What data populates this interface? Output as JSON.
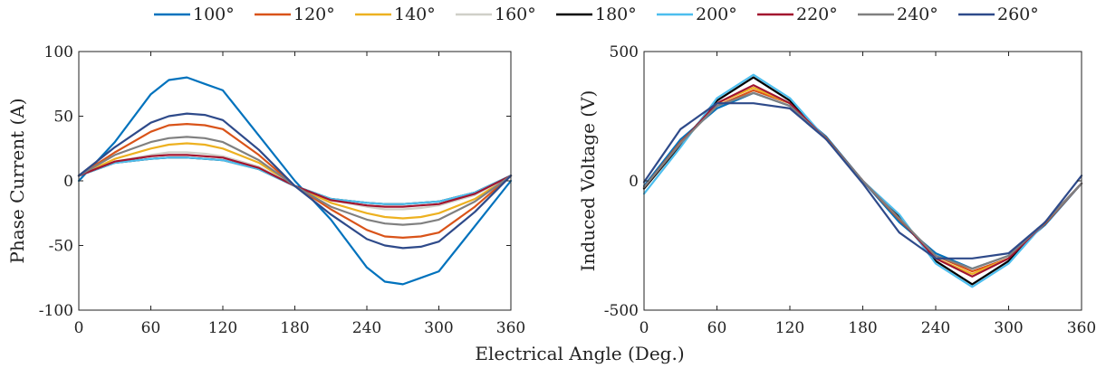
{
  "legend": [
    "100°",
    "120°",
    "140°",
    "160°",
    "180°",
    "200°",
    "220°",
    "240°",
    "260°"
  ],
  "colors": [
    "#0072BD",
    "#D95319",
    "#EDB120",
    "#D0D0C8",
    "#000000",
    "#4DBEEE",
    "#A2142F",
    "#808080",
    "#2E4A8A"
  ],
  "shared_xlabel": "Electrical Angle (Deg.)",
  "chart_data": [
    {
      "type": "line",
      "title": "",
      "xlabel": "Electrical Angle (Deg.)",
      "ylabel": "Phase Current (A)",
      "xlim": [
        0,
        360
      ],
      "ylim": [
        -100,
        100
      ],
      "xticks": [
        "0",
        "60",
        "120",
        "180",
        "240",
        "300",
        "360"
      ],
      "yticks": [
        "100",
        "50",
        "0",
        "-50",
        "-100"
      ],
      "x": [
        0,
        30,
        60,
        75,
        90,
        105,
        120,
        150,
        180,
        210,
        240,
        255,
        270,
        285,
        300,
        330,
        360
      ],
      "series": [
        {
          "name": "100°",
          "values": [
            0,
            30,
            67,
            78,
            80,
            75,
            70,
            35,
            0,
            -30,
            -67,
            -78,
            -80,
            -75,
            -70,
            -35,
            0
          ]
        },
        {
          "name": "120°",
          "values": [
            4,
            22,
            38,
            43,
            44,
            43,
            40,
            20,
            -4,
            -22,
            -38,
            -43,
            -44,
            -43,
            -40,
            -20,
            4
          ]
        },
        {
          "name": "140°",
          "values": [
            4,
            17,
            25,
            28,
            29,
            28,
            25,
            14,
            -4,
            -17,
            -25,
            -28,
            -29,
            -28,
            -25,
            -14,
            4
          ]
        },
        {
          "name": "160°",
          "values": [
            4,
            15,
            20,
            22,
            22,
            21,
            19,
            11,
            -4,
            -15,
            -20,
            -22,
            -22,
            -21,
            -19,
            -11,
            4
          ]
        },
        {
          "name": "180°",
          "values": [
            4,
            14,
            17,
            18,
            18,
            17,
            16,
            9,
            -4,
            -14,
            -17,
            -18,
            -18,
            -17,
            -16,
            -9,
            4
          ]
        },
        {
          "name": "200°",
          "values": [
            4,
            14,
            17,
            18,
            18,
            17,
            16,
            9,
            -4,
            -14,
            -17,
            -18,
            -18,
            -17,
            -16,
            -9,
            4
          ]
        },
        {
          "name": "220°",
          "values": [
            4,
            15,
            19,
            20,
            20,
            19,
            18,
            10,
            -4,
            -15,
            -19,
            -20,
            -20,
            -19,
            -18,
            -10,
            4
          ]
        },
        {
          "name": "240°",
          "values": [
            4,
            20,
            30,
            33,
            34,
            33,
            30,
            16,
            -4,
            -20,
            -30,
            -33,
            -34,
            -33,
            -30,
            -16,
            4
          ]
        },
        {
          "name": "260°",
          "values": [
            4,
            26,
            45,
            50,
            52,
            51,
            47,
            24,
            -4,
            -26,
            -45,
            -50,
            -52,
            -51,
            -47,
            -24,
            4
          ]
        }
      ]
    },
    {
      "type": "line",
      "title": "",
      "xlabel": "Electrical Angle (Deg.)",
      "ylabel": "Induced Voltage (V)",
      "xlim": [
        0,
        360
      ],
      "ylim": [
        -500,
        500
      ],
      "xticks": [
        "0",
        "60",
        "120",
        "180",
        "240",
        "300",
        "360"
      ],
      "yticks": [
        "500",
        "0",
        "-500"
      ],
      "x": [
        0,
        30,
        60,
        90,
        120,
        150,
        180,
        210,
        240,
        270,
        300,
        330,
        360
      ],
      "series": [
        {
          "name": "100°",
          "values": [
            -20,
            160,
            280,
            340,
            290,
            170,
            0,
            -160,
            -280,
            -340,
            -290,
            -170,
            -10
          ]
        },
        {
          "name": "120°",
          "values": [
            -25,
            150,
            290,
            350,
            300,
            165,
            0,
            -150,
            -290,
            -350,
            -300,
            -165,
            -10
          ]
        },
        {
          "name": "140°",
          "values": [
            -30,
            140,
            300,
            360,
            300,
            160,
            0,
            -140,
            -300,
            -360,
            -300,
            -160,
            -10
          ]
        },
        {
          "name": "160°",
          "values": [
            -30,
            140,
            300,
            370,
            300,
            160,
            0,
            -140,
            -300,
            -370,
            -300,
            -160,
            -10
          ]
        },
        {
          "name": "180°",
          "values": [
            -30,
            140,
            310,
            400,
            310,
            160,
            0,
            -140,
            -310,
            -400,
            -310,
            -160,
            -10
          ]
        },
        {
          "name": "200°",
          "values": [
            -50,
            130,
            320,
            410,
            320,
            160,
            0,
            -130,
            -320,
            -410,
            -320,
            -160,
            -10
          ]
        },
        {
          "name": "220°",
          "values": [
            -25,
            145,
            300,
            370,
            300,
            160,
            0,
            -145,
            -300,
            -370,
            -300,
            -160,
            -10
          ]
        },
        {
          "name": "240°",
          "values": [
            -25,
            145,
            290,
            340,
            290,
            160,
            0,
            -145,
            -290,
            -340,
            -290,
            -160,
            -10
          ]
        },
        {
          "name": "260°",
          "values": [
            -5,
            200,
            300,
            300,
            280,
            160,
            -10,
            -200,
            -300,
            -300,
            -280,
            -160,
            20
          ]
        }
      ]
    }
  ]
}
